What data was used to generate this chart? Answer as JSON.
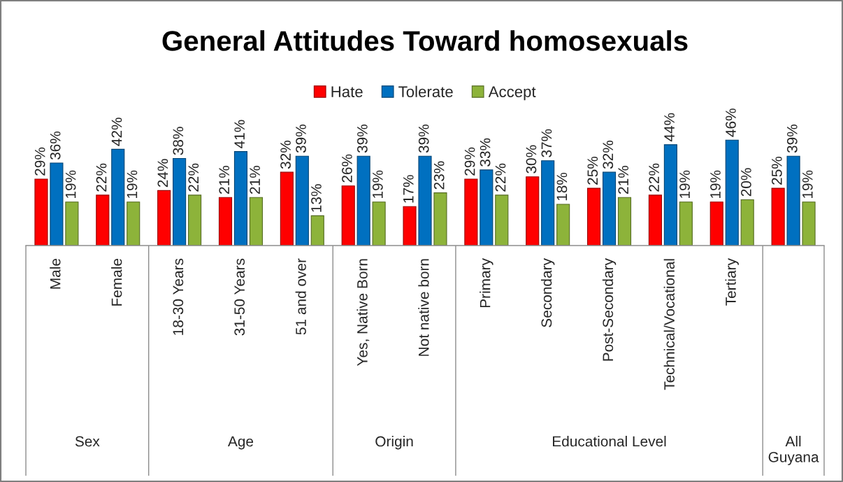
{
  "chart_data": {
    "type": "bar",
    "title": "General Attitudes Toward homosexuals",
    "categories": [
      "Male",
      "Female",
      "18-30 Years",
      "31-50 Years",
      "51 and over",
      "Yes, Native Born",
      "Not native born",
      "Primary",
      "Secondary",
      "Post-Secondary",
      "Technical/Vocational",
      "Tertiary",
      null
    ],
    "series": [
      {
        "name": "Hate",
        "color": "#ff0000",
        "values": [
          29,
          22,
          24,
          21,
          32,
          26,
          17,
          29,
          30,
          25,
          22,
          19,
          25
        ],
        "value_labels": [
          "29%",
          "22%",
          "24%",
          "21%",
          "32%",
          "26%",
          "17%",
          "29%",
          "30%",
          "25%",
          "22%",
          "19%",
          "25%"
        ]
      },
      {
        "name": "Tolerate",
        "color": "#0070c0",
        "values": [
          36,
          42,
          38,
          41,
          39,
          39,
          39,
          33,
          37,
          32,
          44,
          46,
          39
        ],
        "value_labels": [
          "36%",
          "42%",
          "38%",
          "41%",
          "39%",
          "39%",
          "39%",
          "33%",
          "37%",
          "32%",
          "44%",
          "46%",
          "39%"
        ]
      },
      {
        "name": "Accept",
        "color": "#8db33a",
        "values": [
          19,
          19,
          22,
          21,
          13,
          19,
          23,
          22,
          18,
          21,
          19,
          20,
          19
        ],
        "value_labels": [
          "19%",
          "19%",
          "22%",
          "21%",
          "13%",
          "19%",
          "23%",
          "22%",
          "18%",
          "21%",
          "19%",
          "20%",
          "19%"
        ]
      }
    ],
    "annotations": [
      "Sex",
      "Age",
      "Origin",
      "Educational Level",
      "All Guyana"
    ],
    "legend": "top",
    "tick_labels": "x"
  }
}
